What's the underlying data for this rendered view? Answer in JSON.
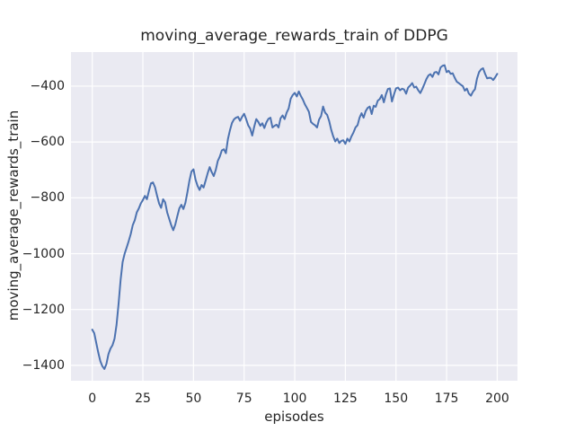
{
  "figure": {
    "background": "#ffffff"
  },
  "chart_data": {
    "type": "line",
    "title": "moving_average_rewards_train of DDPG",
    "xlabel": "episodes",
    "ylabel": "moving_average_rewards_train",
    "xlim": [
      -10.5,
      210
    ],
    "ylim": [
      -1455,
      -278
    ],
    "x_ticks": [
      0,
      25,
      50,
      75,
      100,
      125,
      150,
      175,
      200
    ],
    "y_ticks": [
      -1400,
      -1200,
      -1000,
      -800,
      -600,
      -400
    ],
    "grid": true,
    "legend_visible": false,
    "style": {
      "axes_background": "#EAEAF2",
      "grid_color": "#FFFFFF",
      "line_color": "#4C72B0",
      "text_color": "#262626"
    },
    "series": [
      {
        "name": "moving_average_rewards_train",
        "x": [
          0,
          1,
          2,
          3,
          4,
          5,
          6,
          7,
          8,
          9,
          10,
          11,
          12,
          13,
          14,
          15,
          16,
          17,
          18,
          19,
          20,
          21,
          22,
          23,
          24,
          25,
          26,
          27,
          28,
          29,
          30,
          31,
          32,
          33,
          34,
          35,
          36,
          37,
          38,
          39,
          40,
          41,
          42,
          43,
          44,
          45,
          46,
          47,
          48,
          49,
          50,
          51,
          52,
          53,
          54,
          55,
          56,
          57,
          58,
          59,
          60,
          61,
          62,
          63,
          64,
          65,
          66,
          67,
          68,
          69,
          70,
          71,
          72,
          73,
          74,
          75,
          76,
          77,
          78,
          79,
          80,
          81,
          82,
          83,
          84,
          85,
          86,
          87,
          88,
          89,
          90,
          91,
          92,
          93,
          94,
          95,
          96,
          97,
          98,
          99,
          100,
          101,
          102,
          103,
          104,
          105,
          106,
          107,
          108,
          109,
          110,
          111,
          112,
          113,
          114,
          115,
          116,
          117,
          118,
          119,
          120,
          121,
          122,
          123,
          124,
          125,
          126,
          127,
          128,
          129,
          130,
          131,
          132,
          133,
          134,
          135,
          136,
          137,
          138,
          139,
          140,
          141,
          142,
          143,
          144,
          145,
          146,
          147,
          148,
          149,
          150,
          151,
          152,
          153,
          154,
          155,
          156,
          157,
          158,
          159,
          160,
          161,
          162,
          163,
          164,
          165,
          166,
          167,
          168,
          169,
          170,
          171,
          172,
          173,
          174,
          175,
          176,
          177,
          178,
          179,
          180,
          181,
          182,
          183,
          184,
          185,
          186,
          187,
          188,
          189,
          190,
          191,
          192,
          193,
          194,
          195,
          196,
          197,
          198,
          199,
          200
        ],
        "y": [
          -1272,
          -1285,
          -1320,
          -1355,
          -1385,
          -1403,
          -1413,
          -1395,
          -1360,
          -1340,
          -1328,
          -1305,
          -1255,
          -1180,
          -1095,
          -1030,
          -1000,
          -978,
          -955,
          -930,
          -898,
          -880,
          -852,
          -838,
          -820,
          -808,
          -793,
          -805,
          -775,
          -748,
          -745,
          -762,
          -792,
          -820,
          -836,
          -805,
          -816,
          -852,
          -875,
          -898,
          -916,
          -896,
          -866,
          -838,
          -825,
          -840,
          -818,
          -780,
          -738,
          -706,
          -698,
          -735,
          -757,
          -772,
          -754,
          -763,
          -738,
          -712,
          -690,
          -708,
          -722,
          -700,
          -668,
          -652,
          -630,
          -626,
          -640,
          -590,
          -558,
          -532,
          -519,
          -513,
          -510,
          -524,
          -510,
          -499,
          -518,
          -540,
          -552,
          -577,
          -545,
          -518,
          -528,
          -542,
          -533,
          -550,
          -530,
          -517,
          -513,
          -548,
          -542,
          -538,
          -548,
          -515,
          -505,
          -518,
          -495,
          -480,
          -445,
          -432,
          -424,
          -437,
          -419,
          -435,
          -448,
          -465,
          -478,
          -492,
          -528,
          -535,
          -540,
          -548,
          -520,
          -507,
          -473,
          -495,
          -503,
          -525,
          -556,
          -580,
          -598,
          -588,
          -604,
          -596,
          -594,
          -607,
          -588,
          -598,
          -580,
          -566,
          -548,
          -540,
          -513,
          -497,
          -513,
          -490,
          -478,
          -473,
          -500,
          -470,
          -474,
          -452,
          -446,
          -432,
          -458,
          -430,
          -410,
          -408,
          -455,
          -430,
          -408,
          -405,
          -415,
          -409,
          -412,
          -427,
          -405,
          -398,
          -389,
          -405,
          -402,
          -415,
          -425,
          -410,
          -393,
          -375,
          -362,
          -357,
          -367,
          -351,
          -349,
          -358,
          -333,
          -327,
          -325,
          -350,
          -345,
          -356,
          -354,
          -370,
          -384,
          -389,
          -395,
          -400,
          -416,
          -409,
          -427,
          -434,
          -420,
          -411,
          -373,
          -350,
          -340,
          -336,
          -356,
          -372,
          -370,
          -371,
          -378,
          -368,
          -356
        ]
      }
    ]
  }
}
